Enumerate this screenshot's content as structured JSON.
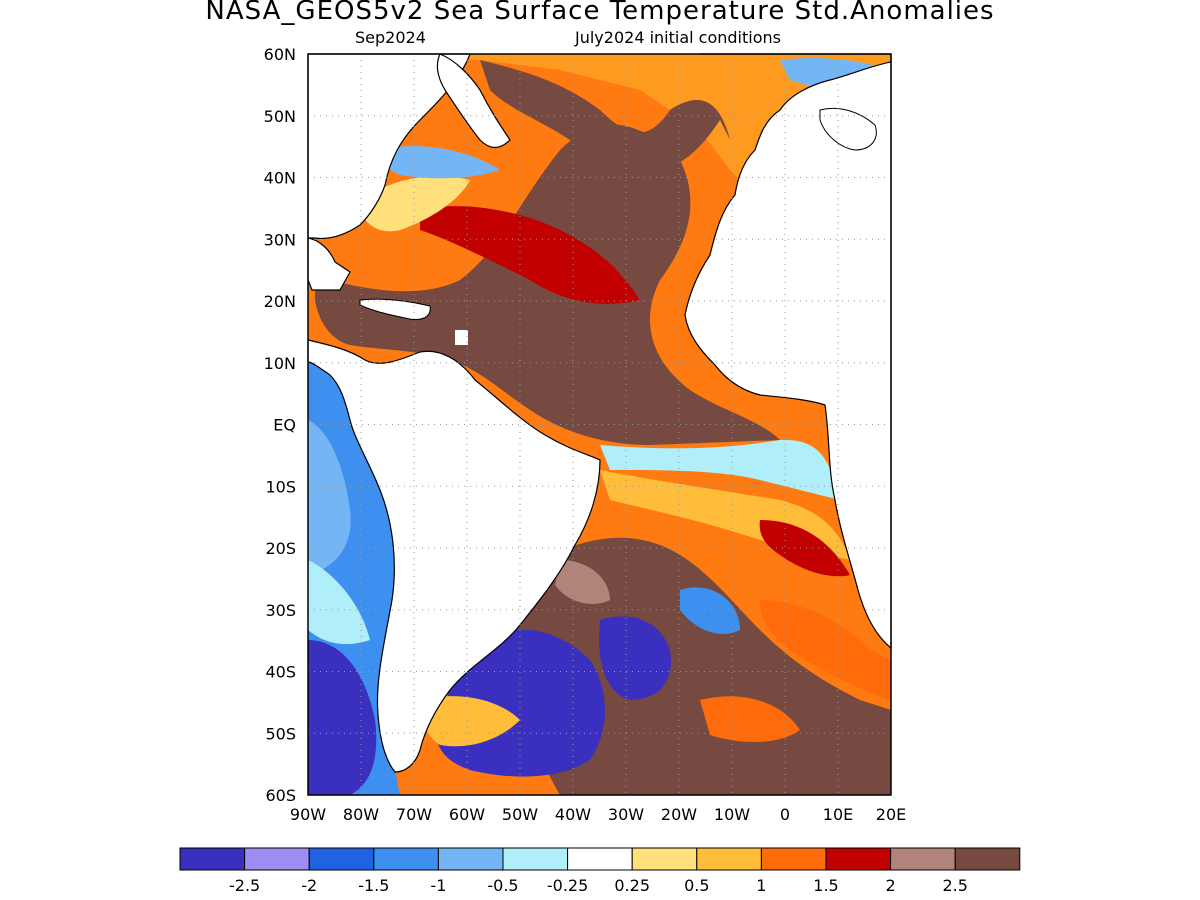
{
  "title": "NASA_GEOS5v2 Sea Surface Temperature Std.Anomalies",
  "subtitle_left": "Sep2024",
  "subtitle_right": "July2024 initial conditions",
  "lat_labels": [
    "60N",
    "50N",
    "40N",
    "30N",
    "20N",
    "10N",
    "EQ",
    "10S",
    "20S",
    "30S",
    "40S",
    "50S",
    "60S"
  ],
  "lon_labels": [
    "90W",
    "80W",
    "70W",
    "60W",
    "50W",
    "40W",
    "30W",
    "20W",
    "10W",
    "0",
    "10E",
    "20E"
  ],
  "colorbar": {
    "colors": [
      "#3b2fbf",
      "#9d8cf2",
      "#1f63e3",
      "#3d8ff0",
      "#74b6f5",
      "#b0eefa",
      "#ffffff",
      "#ffe07a",
      "#ffbd3a",
      "#ff6a0a",
      "#c20000",
      "#b08478",
      "#764a40"
    ],
    "labels": [
      "-2.5",
      "-2",
      "-1.5",
      "-1",
      "-0.5",
      "-0.25",
      "0.25",
      "0.5",
      "1",
      "1.5",
      "2",
      "2.5"
    ]
  }
}
